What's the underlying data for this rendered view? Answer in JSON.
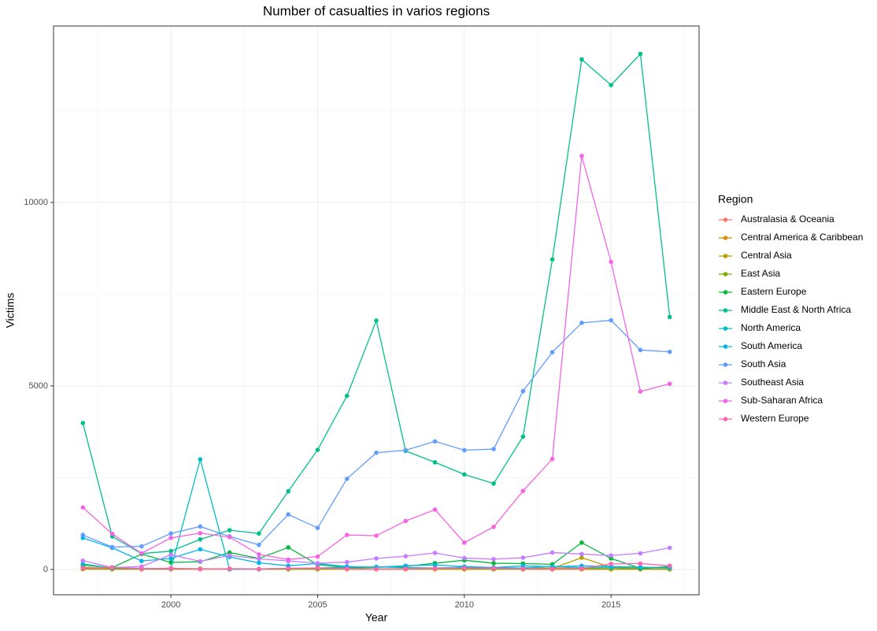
{
  "chart_data": {
    "type": "line",
    "title": "Number of casualties in varios regions",
    "x_label": "Year",
    "y_label": "Victims",
    "legend_title": "Region",
    "legend": "right",
    "grid": true,
    "x": [
      1997,
      1998,
      1999,
      2000,
      2001,
      2002,
      2003,
      2004,
      2005,
      2006,
      2007,
      2008,
      2009,
      2010,
      2011,
      2012,
      2013,
      2014,
      2015,
      2016,
      2017
    ],
    "xlim": [
      1996,
      2018
    ],
    "xticks": [
      2000,
      2005,
      2010,
      2015
    ],
    "ylim": [
      -690,
      14810
    ],
    "yticks": [
      0,
      5000,
      10000
    ],
    "series": [
      {
        "name": "Australasia & Oceania",
        "color": "#F8766D",
        "values": [
          5,
          2,
          3,
          2,
          5,
          3,
          2,
          3,
          2,
          4,
          3,
          2,
          5,
          2,
          3,
          2,
          3,
          2,
          4,
          3,
          2
        ]
      },
      {
        "name": "Central America & Caribbean",
        "color": "#DE8C00",
        "values": [
          60,
          40,
          20,
          30,
          15,
          10,
          10,
          8,
          10,
          8,
          5,
          10,
          8,
          10,
          5,
          8,
          5,
          10,
          5,
          8,
          5
        ]
      },
      {
        "name": "Central Asia",
        "color": "#B79F00",
        "values": [
          20,
          10,
          15,
          20,
          10,
          15,
          10,
          20,
          10,
          15,
          10,
          20,
          30,
          15,
          10,
          40,
          30,
          320,
          60,
          20,
          20
        ]
      },
      {
        "name": "East Asia",
        "color": "#7CAE00",
        "values": [
          20,
          15,
          10,
          15,
          20,
          10,
          15,
          10,
          20,
          40,
          15,
          20,
          30,
          20,
          15,
          10,
          40,
          30,
          20,
          15,
          10
        ]
      },
      {
        "name": "Eastern Europe",
        "color": "#00BA38",
        "values": [
          120,
          50,
          420,
          190,
          210,
          460,
          300,
          600,
          130,
          50,
          60,
          80,
          170,
          250,
          170,
          160,
          140,
          730,
          300,
          30,
          80
        ]
      },
      {
        "name": "Middle East & North Africa",
        "color": "#00C08B",
        "values": [
          3990,
          900,
          430,
          500,
          820,
          1070,
          980,
          2130,
          3260,
          4730,
          6780,
          3230,
          2920,
          2590,
          2340,
          3620,
          8450,
          13900,
          13200,
          14050,
          6880
        ]
      },
      {
        "name": "North America",
        "color": "#00BFC4",
        "values": [
          150,
          40,
          30,
          20,
          3000,
          5,
          10,
          30,
          40,
          60,
          70,
          50,
          40,
          60,
          50,
          40,
          80,
          50,
          60,
          60,
          50
        ]
      },
      {
        "name": "South America",
        "color": "#00B4F0",
        "values": [
          860,
          590,
          230,
          300,
          550,
          340,
          180,
          100,
          160,
          80,
          60,
          100,
          120,
          80,
          50,
          100,
          70,
          100,
          80,
          60,
          50
        ]
      },
      {
        "name": "South Asia",
        "color": "#619CFF",
        "values": [
          940,
          610,
          630,
          980,
          1170,
          900,
          670,
          1500,
          1130,
          2470,
          3180,
          3250,
          3490,
          3250,
          3280,
          4860,
          5920,
          6720,
          6790,
          5980,
          5930
        ]
      },
      {
        "name": "Southeast Asia",
        "color": "#C77CFF",
        "values": [
          240,
          50,
          80,
          400,
          220,
          380,
          290,
          230,
          170,
          200,
          300,
          360,
          450,
          310,
          280,
          320,
          460,
          420,
          380,
          440,
          590
        ]
      },
      {
        "name": "Sub-Saharan Africa",
        "color": "#F564E3",
        "values": [
          1690,
          970,
          440,
          860,
          990,
          880,
          410,
          270,
          350,
          940,
          920,
          1320,
          1630,
          730,
          1160,
          2140,
          3010,
          11270,
          8380,
          4850,
          5060
        ]
      },
      {
        "name": "Western Europe",
        "color": "#FF64B0",
        "values": [
          40,
          60,
          20,
          30,
          10,
          20,
          15,
          30,
          40,
          20,
          10,
          20,
          30,
          40,
          30,
          20,
          20,
          30,
          150,
          160,
          100
        ]
      }
    ]
  }
}
